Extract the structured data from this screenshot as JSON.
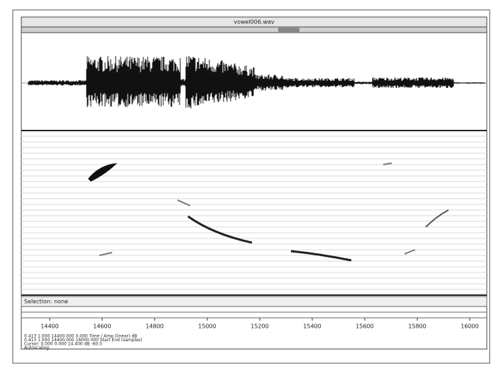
{
  "window": {
    "title": "vowel006.wav"
  },
  "status": "Selection: none",
  "time_axis": {
    "labels": [
      "14400",
      "14600",
      "14800",
      "15000",
      "15200",
      "15400",
      "15600",
      "15800",
      "16000"
    ]
  },
  "info_lines": [
    "0.413  1.000  14400.000  0.000  Time / Amp  (linear)  dB",
    "0.413  1.000  14400.000  16000.000  Start  End  (samples)",
    "Cursor: 0.000  0.000  14.400  dB  -60.0",
    "Autoscaling"
  ]
}
